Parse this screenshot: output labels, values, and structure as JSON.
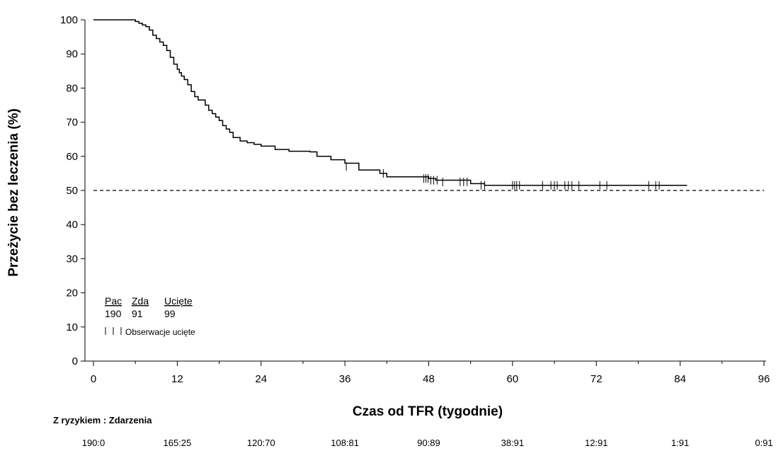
{
  "chart_data": {
    "type": "line",
    "xlabel": "Czas od TFR (tygodnie)",
    "ylabel": "Przeżycie bez leczenia (%)",
    "xlim": [
      0,
      96
    ],
    "ylim": [
      0,
      100
    ],
    "x_ticks": [
      0,
      12,
      24,
      36,
      48,
      60,
      72,
      84,
      96
    ],
    "x_tick_labels": [
      "0",
      "12",
      "24",
      "36",
      "48",
      "60",
      "72",
      "84",
      "96"
    ],
    "y_ticks": [
      0,
      10,
      20,
      30,
      40,
      50,
      60,
      70,
      80,
      90,
      100
    ],
    "y_tick_labels": [
      "0",
      "10",
      "20",
      "30",
      "40",
      "50",
      "60",
      "70",
      "80",
      "90",
      "100"
    ],
    "reference_line": 50,
    "grid": false,
    "series": [
      {
        "x": [
          0,
          6,
          6.5,
          7,
          7.5,
          8,
          8.5,
          9,
          9.5,
          10,
          10.5,
          11,
          11.5,
          12,
          12.3,
          12.6,
          13,
          13.5,
          14,
          14.5,
          15,
          16,
          16.5,
          17,
          17.5,
          18,
          18.5,
          19,
          19.5,
          20,
          21,
          22,
          23,
          24,
          26,
          28,
          31,
          32,
          34,
          36,
          38,
          41,
          42,
          48,
          49,
          54,
          56,
          85
        ],
        "y": [
          100,
          99.5,
          99,
          98.5,
          98,
          97,
          95.5,
          94.5,
          93.5,
          92.5,
          91,
          89,
          87,
          85.5,
          84.5,
          83.5,
          82.5,
          81,
          79,
          77.5,
          76.5,
          75,
          73.5,
          72.5,
          71.5,
          70.5,
          69,
          68,
          67,
          65.5,
          64.5,
          64,
          63.5,
          63,
          62,
          61.5,
          61.3,
          60,
          59,
          58,
          56,
          55,
          54,
          53.5,
          53,
          52,
          51.5,
          51.5
        ]
      }
    ],
    "censored": {
      "x": [
        36.2,
        41.5,
        47.3,
        47.6,
        47.9,
        48.3,
        48.7,
        49.2,
        50,
        52.5,
        53,
        53.5,
        55.5,
        56,
        60,
        60.3,
        60.6,
        61,
        64.3,
        65.5,
        66,
        66.4,
        67.5,
        68,
        68.5,
        69.5,
        72.5,
        73.5,
        79.5,
        80.5,
        81
      ],
      "y": [
        57,
        55,
        53.5,
        53.5,
        53.5,
        53,
        53,
        53,
        52.5,
        52.5,
        52.5,
        52.5,
        51.5,
        51.5,
        51.5,
        51.5,
        51.5,
        51.5,
        51.5,
        51.5,
        51.5,
        51.5,
        51.5,
        51.5,
        51.5,
        51.5,
        51.5,
        51.5,
        51.5,
        51.5,
        51.5
      ]
    },
    "legend": {
      "headers": [
        "Pac",
        "Zda",
        "Ucięte"
      ],
      "values": [
        "190",
        "91",
        "99"
      ],
      "censor_label": "Obserwacje ucięte"
    },
    "risk_table": {
      "title": "Z ryzykiem : Zdarzenia",
      "values": [
        "190:0",
        "165:25",
        "120:70",
        "108:81",
        "90:89",
        "38:91",
        "12:91",
        "1:91",
        "0:91"
      ]
    }
  }
}
